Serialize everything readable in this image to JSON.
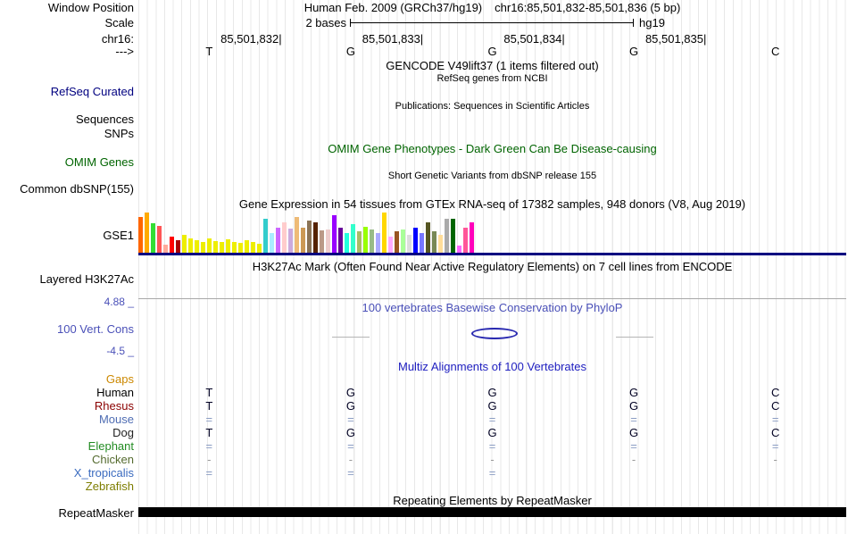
{
  "browser": {
    "assembly_line": "Human Feb. 2009 (GRCh37/hg19)",
    "position_line": "chr16:85,501,832-85,501,836 (5 bp)"
  },
  "labels": {
    "window_position": "Window Position",
    "scale": "Scale",
    "chrom": "chr16:",
    "strand": "--->",
    "refseq": "RefSeq Curated",
    "sequences": "Sequences",
    "snps": "SNPs",
    "omim": "OMIM Genes",
    "dbsnp": "Common dbSNP(155)",
    "gtex": "GSE1",
    "h3k27ac": "Layered H3K27Ac",
    "cons_max": "4.88 _",
    "cons": "100 Vert. Cons",
    "cons_min": "-4.5 _",
    "repeatmasker": "RepeatMasker"
  },
  "ruler": {
    "scale_text": "2 bases",
    "assembly_short": "hg19",
    "coordinates": [
      "85,501,832",
      "85,501,833",
      "85,501,834",
      "85,501,835"
    ],
    "bases": [
      "T",
      "G",
      "G",
      "G",
      "C"
    ]
  },
  "titles": {
    "gencode": "GENCODE V49lift37 (1 items filtered out)",
    "refseq": "RefSeq genes from NCBI",
    "publications": "Publications: Sequences in Scientific Articles",
    "omim": "OMIM Gene Phenotypes - Dark Green Can Be Disease-causing",
    "dbsnp": "Short Genetic Variants from dbSNP release 155",
    "gtex": "Gene Expression in 54 tissues from GTEx RNA-seq of 17382 samples, 948 donors (V8, Aug 2019)",
    "h3k27ac": "H3K27Ac Mark (Often Found Near Active Regulatory Elements) on 7 cell lines from ENCODE",
    "cons": "100 vertebrates Basewise Conservation by PhyloP",
    "multiz": "Multiz Alignments of 100 Vertebrates",
    "repeat": "Repeating Elements by RepeatMasker"
  },
  "multiz": {
    "species": [
      {
        "name": "Gaps",
        "color": "#cc8800",
        "bases": [
          "",
          "",
          "",
          "",
          ""
        ]
      },
      {
        "name": "Human",
        "color": "#000000",
        "bases": [
          "T",
          "G",
          "G",
          "G",
          "C"
        ]
      },
      {
        "name": "Rhesus",
        "color": "#8b0000",
        "bases": [
          "T",
          "G",
          "G",
          "G",
          "C"
        ]
      },
      {
        "name": "Mouse",
        "color": "#4f6db3",
        "bases": [
          "=",
          "=",
          "=",
          "=",
          "="
        ]
      },
      {
        "name": "Dog",
        "color": "#222222",
        "bases": [
          "T",
          "G",
          "G",
          "G",
          "C"
        ]
      },
      {
        "name": "Elephant",
        "color": "#228b22",
        "bases": [
          "=",
          "=",
          "=",
          "=",
          "="
        ]
      },
      {
        "name": "Chicken",
        "color": "#556b2f",
        "bases": [
          "-",
          "-",
          "-",
          "-",
          "-"
        ]
      },
      {
        "name": "X_tropicalis",
        "color": "#3b6bbf",
        "bases": [
          "=",
          "=",
          "=",
          "",
          ""
        ]
      },
      {
        "name": "Zebrafish",
        "color": "#7d7d00",
        "bases": [
          "",
          "",
          "",
          "",
          ""
        ]
      }
    ]
  },
  "conservation": {
    "max": 4.88,
    "min": -4.5
  },
  "chart_data": {
    "type": "bar",
    "title": "Gene Expression in 54 tissues from GTEx RNA-seq of 17382 samples, 948 donors (V8, Aug 2019)",
    "note": "GTEx tissue expression bars; heights are relative screen heights in px, tissue names not visible in image",
    "colors": [
      "#FF6600",
      "#FFAA00",
      "#33DD33",
      "#FF5555",
      "#FFAA99",
      "#FF0000",
      "#AA0000",
      "#EEEE00",
      "#EEEE00",
      "#EEEE00",
      "#EEEE00",
      "#EEEE00",
      "#EEEE00",
      "#EEEE00",
      "#EEEE00",
      "#EEEE00",
      "#EEEE00",
      "#EEEE00",
      "#EEEE00",
      "#EEEE00",
      "#33CCCC",
      "#AAEEFF",
      "#CC66FF",
      "#FFCCCC",
      "#CCAADD",
      "#EEBB77",
      "#CC9955",
      "#8B7355",
      "#552200",
      "#BB9988",
      "#EECCCC",
      "#9900FF",
      "#660099",
      "#22FFDD",
      "#33FFCC",
      "#AABB66",
      "#99FF00",
      "#99BB88",
      "#AAAAFF",
      "#FFD700",
      "#FFAAFF",
      "#995522",
      "#AAFF99",
      "#DDDDDD",
      "#0000FF",
      "#7777FF",
      "#555522",
      "#778855",
      "#FFDD99",
      "#AAAAAA",
      "#006600",
      "#FF66FF",
      "#FF5599",
      "#FF00BB"
    ],
    "heights": [
      40,
      45,
      33,
      30,
      9,
      18,
      14,
      20,
      16,
      14,
      12,
      16,
      13,
      12,
      15,
      12,
      11,
      14,
      12,
      10,
      38,
      22,
      28,
      34,
      27,
      40,
      28,
      36,
      34,
      25,
      26,
      42,
      28,
      22,
      32,
      24,
      29,
      26,
      22,
      45,
      18,
      24,
      26,
      20,
      28,
      22,
      34,
      24,
      20,
      38,
      38,
      8,
      28,
      34
    ]
  }
}
